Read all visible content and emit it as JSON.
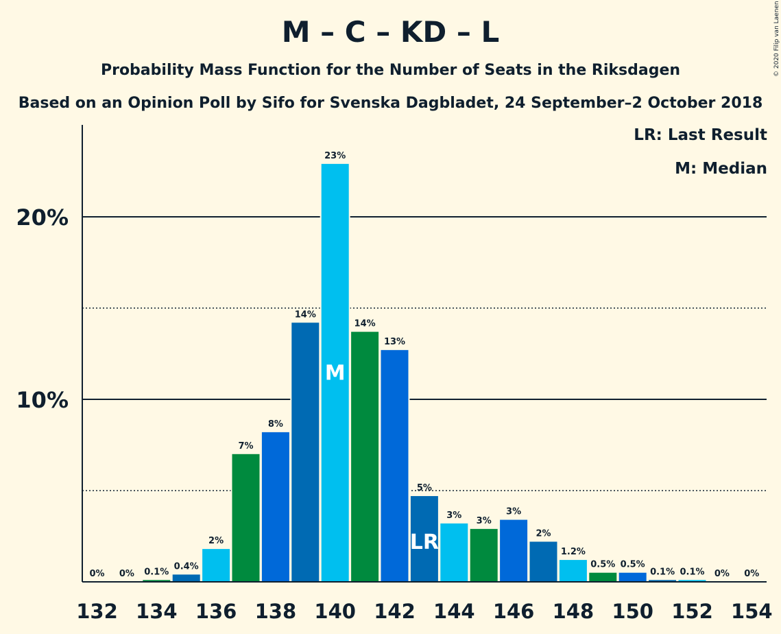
{
  "title": "M – C – KD – L",
  "subtitle": "Probability Mass Function for the Number of Seats in the Riksdagen",
  "subtitle2": "Based on an Opinion Poll by Sifo for Svenska Dagbladet, 24 September–2 October 2018",
  "copyright": "© 2020 Filip van Laenen",
  "legend": {
    "last_result": "LR: Last Result",
    "median": "M: Median"
  },
  "colors": {
    "background": "#FFF9E5",
    "text": "#0F1F2E",
    "party_colors": [
      "#006AB3",
      "#00B9E7",
      "#00843A",
      "#006AB3"
    ],
    "palette_cycle": [
      "#006AB3",
      "#00BFEF",
      "#008A3E",
      "#0069D9"
    ]
  },
  "chart_data": {
    "type": "bar",
    "categories": [
      132,
      133,
      134,
      135,
      136,
      137,
      138,
      139,
      140,
      141,
      142,
      143,
      144,
      145,
      146,
      147,
      148,
      149,
      150,
      151,
      152,
      153,
      154
    ],
    "values": [
      0,
      0,
      0.1,
      0.4,
      1.8,
      7.0,
      8.2,
      14.2,
      22.9,
      13.7,
      12.7,
      4.7,
      3.2,
      2.9,
      3.4,
      2.2,
      1.2,
      0.5,
      0.5,
      0.1,
      0.1,
      0,
      0
    ],
    "labels": [
      "0%",
      "0%",
      "0.1%",
      "0.4%",
      "2%",
      "7%",
      "8%",
      "14%",
      "23%",
      "14%",
      "13%",
      "5%",
      "3%",
      "3%",
      "3%",
      "2%",
      "1.2%",
      "0.5%",
      "0.5%",
      "0.1%",
      "0.1%",
      "0%",
      "0%"
    ],
    "bar_colors": [
      "#006AB3",
      "#00BFEF",
      "#008A3E",
      "#006AB3",
      "#00BFEF",
      "#008A3E",
      "#0069D9",
      "#006AB3",
      "#00BFEF",
      "#008A3E",
      "#0069D9",
      "#006AB3",
      "#00BFEF",
      "#008A3E",
      "#0069D9",
      "#006AB3",
      "#00BFEF",
      "#008A3E",
      "#0069D9",
      "#006AB3",
      "#00BFEF",
      "#008A3E",
      "#0069D9"
    ],
    "x_tick_labels": [
      "132",
      "134",
      "136",
      "138",
      "140",
      "142",
      "144",
      "146",
      "148",
      "150",
      "152",
      "154"
    ],
    "y_tick_labels": [
      "10%",
      "20%"
    ],
    "ylim": [
      0,
      25
    ],
    "solid_gridlines": [
      10,
      20
    ],
    "dotted_gridlines": [
      5,
      15
    ],
    "median": {
      "seats": 140,
      "label": "M"
    },
    "last_result": {
      "seats": 143,
      "label": "LR"
    }
  }
}
